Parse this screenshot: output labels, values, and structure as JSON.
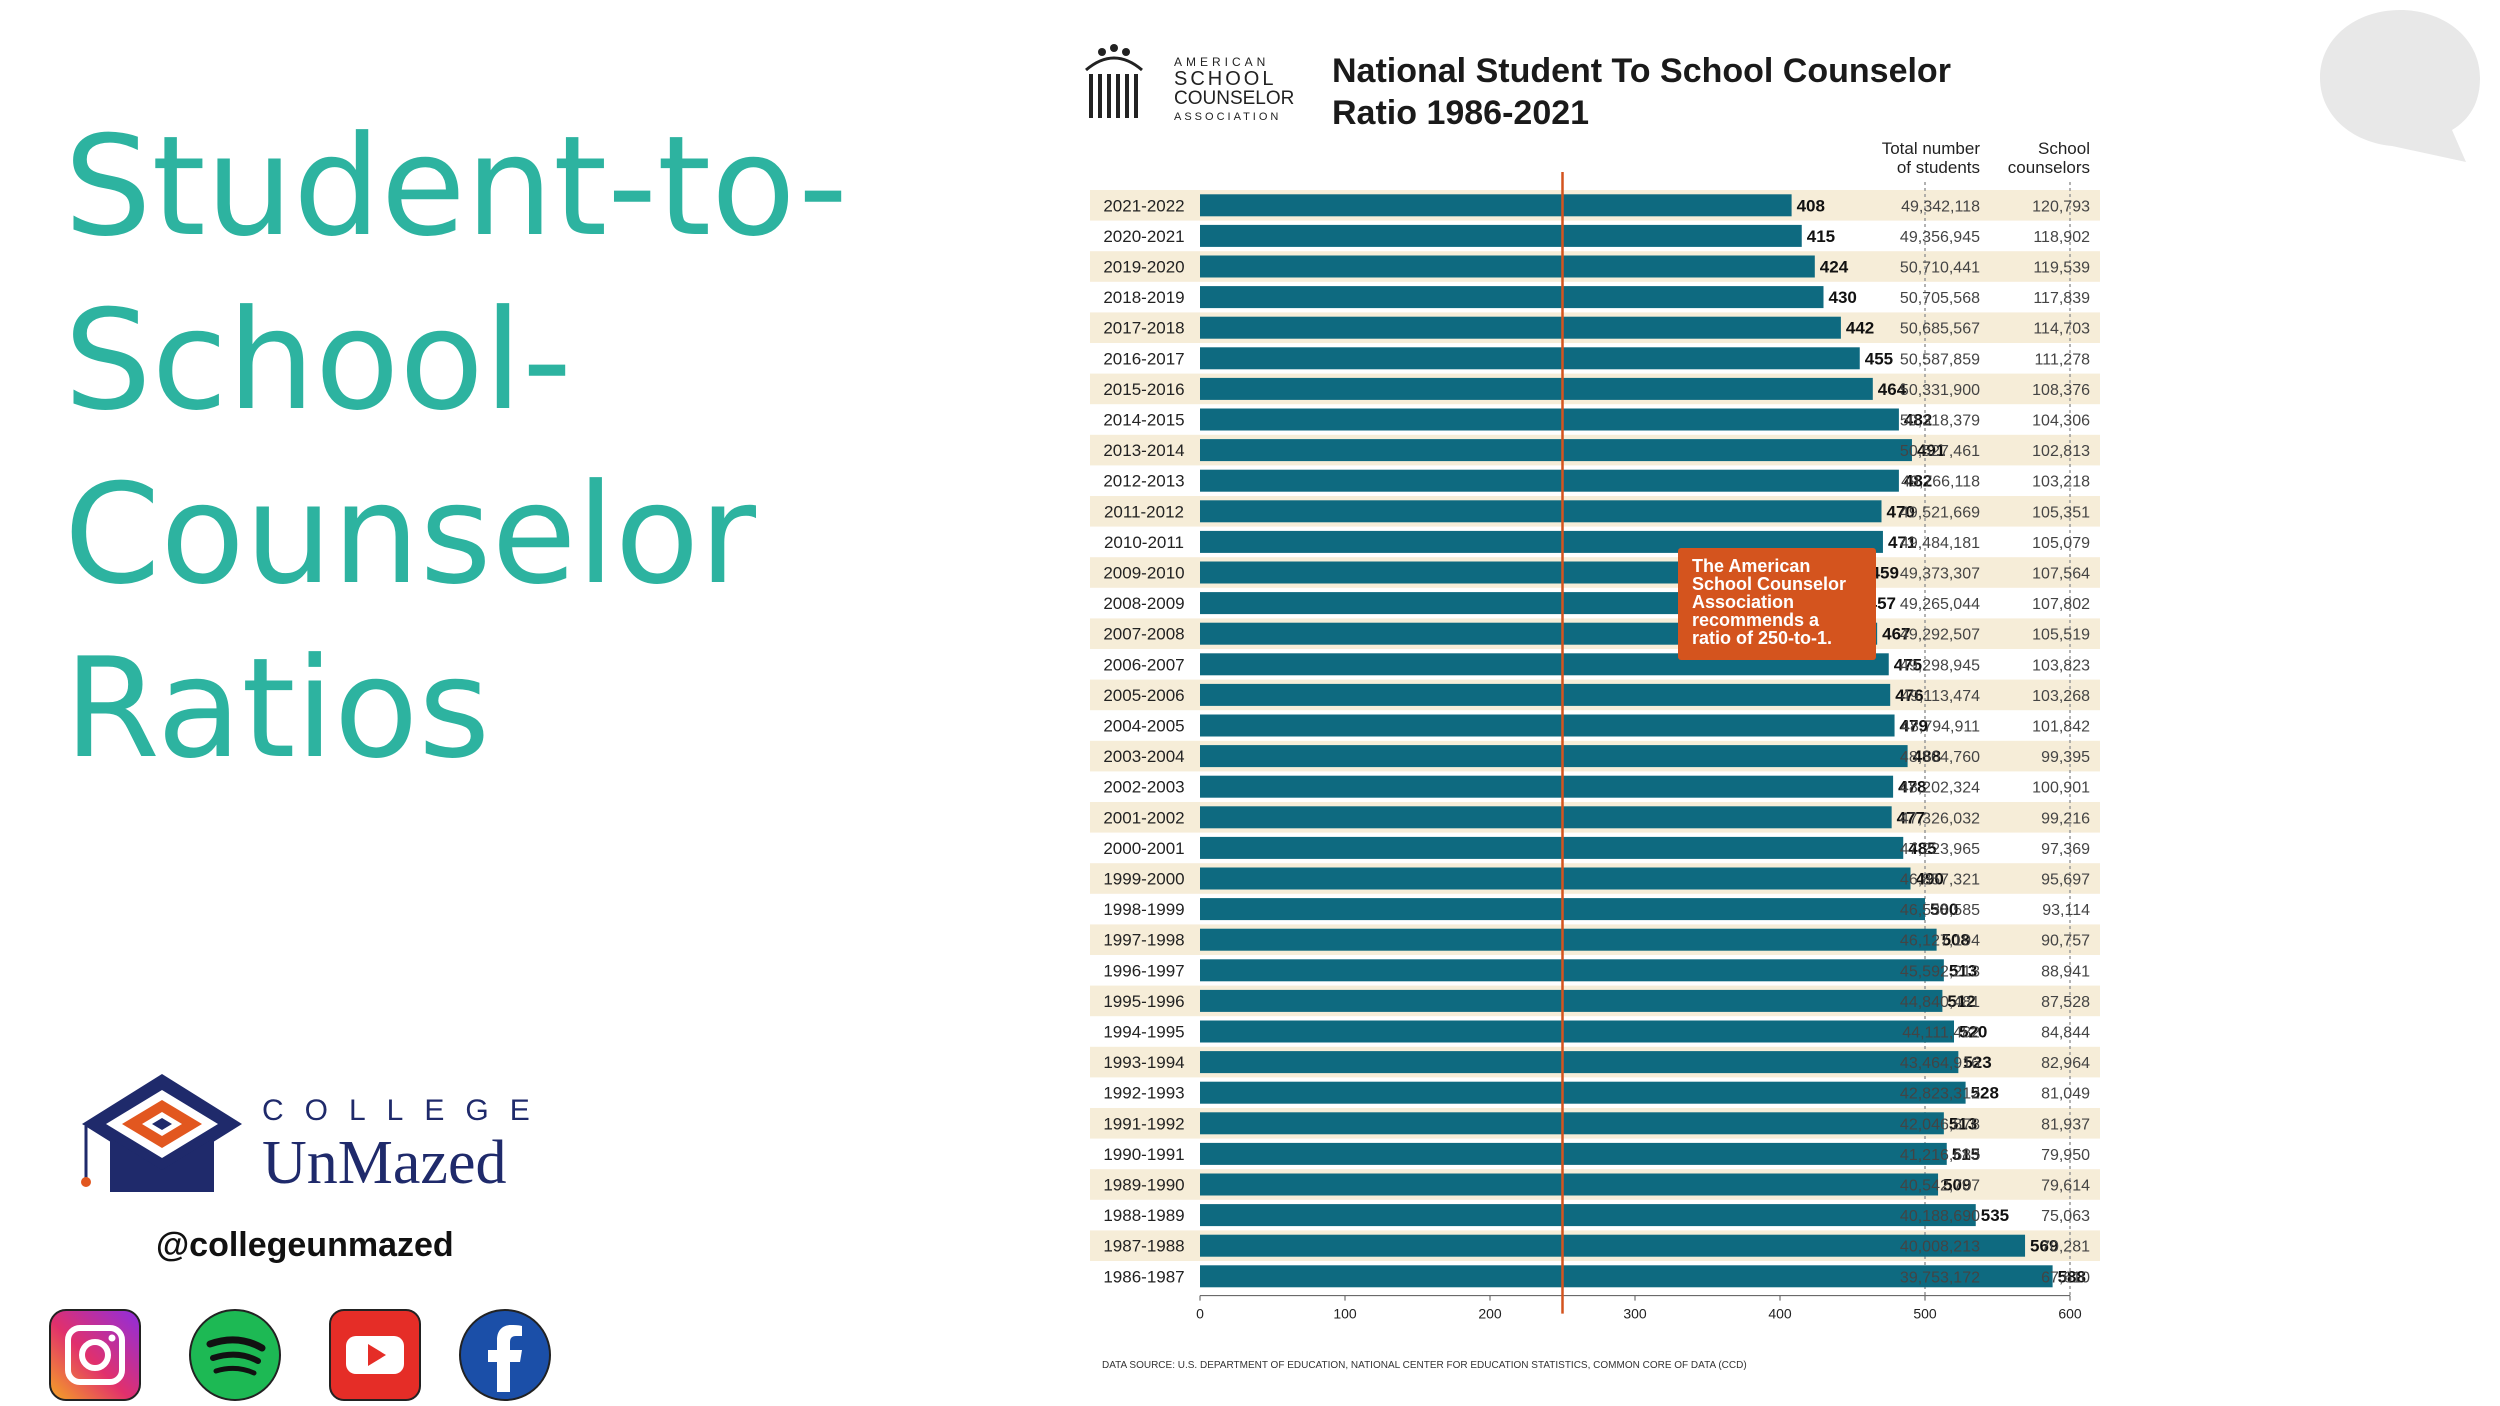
{
  "slide": {
    "title_lines": [
      "Student-to-",
      "School-",
      "Counselor",
      "Ratios"
    ],
    "handle": "@collegeunmazed",
    "brand": {
      "top_word": "COLLEGE",
      "name": "UnMazed"
    },
    "social_icons": [
      "instagram-icon",
      "spotify-icon",
      "youtube-icon",
      "facebook-icon"
    ]
  },
  "colors": {
    "title": "#2db3a0",
    "bar": "#0e6a80",
    "row_band": "#f6edd8",
    "callout": "#d4541e",
    "brand_navy": "#1f2a6b",
    "brand_orange": "#e2571f"
  },
  "asca_logo": {
    "line1": "AMERICAN",
    "line2": "SCHOOL",
    "line3": "COUNSELOR",
    "line4": "ASSOCIATION"
  },
  "chart_data": {
    "type": "bar",
    "orientation": "horizontal",
    "title": "National Student To School Counselor Ratio 1986-2021",
    "title_lines": [
      "National Student To School Counselor",
      "Ratio 1986-2021"
    ],
    "col_headers": {
      "students": [
        "Total number",
        "of students"
      ],
      "counselors": [
        "School",
        "counselors"
      ]
    },
    "xlim": [
      0,
      600
    ],
    "xticks": [
      0,
      100,
      200,
      300,
      400,
      500,
      600
    ],
    "reference_value": 250,
    "dashed_gridlines": [
      500,
      600
    ],
    "callout_lines": [
      "The American",
      "School Counselor",
      "Association",
      "recommends a",
      "ratio of 250-to-1."
    ],
    "source": "DATA SOURCE: U.S. DEPARTMENT OF EDUCATION, NATIONAL CENTER FOR EDUCATION STATISTICS, COMMON CORE OF DATA (CCD)",
    "rows": [
      {
        "year": "2021-2022",
        "ratio": 408,
        "students": "49,342,118",
        "counselors": "120,793"
      },
      {
        "year": "2020-2021",
        "ratio": 415,
        "students": "49,356,945",
        "counselors": "118,902"
      },
      {
        "year": "2019-2020",
        "ratio": 424,
        "students": "50,710,441",
        "counselors": "119,539"
      },
      {
        "year": "2018-2019",
        "ratio": 430,
        "students": "50,705,568",
        "counselors": "117,839"
      },
      {
        "year": "2017-2018",
        "ratio": 442,
        "students": "50,685,567",
        "counselors": "114,703"
      },
      {
        "year": "2016-2017",
        "ratio": 455,
        "students": "50,587,859",
        "counselors": "111,278"
      },
      {
        "year": "2015-2016",
        "ratio": 464,
        "students": "50,331,900",
        "counselors": "108,376"
      },
      {
        "year": "2014-2015",
        "ratio": 482,
        "students": "50,318,379",
        "counselors": "104,306"
      },
      {
        "year": "2013-2014",
        "ratio": 491,
        "students": "50,527,461",
        "counselors": "102,813"
      },
      {
        "year": "2012-2013",
        "ratio": 482,
        "students": "49,766,118",
        "counselors": "103,218"
      },
      {
        "year": "2011-2012",
        "ratio": 470,
        "students": "49,521,669",
        "counselors": "105,351"
      },
      {
        "year": "2010-2011",
        "ratio": 471,
        "students": "49,484,181",
        "counselors": "105,079"
      },
      {
        "year": "2009-2010",
        "ratio": 459,
        "students": "49,373,307",
        "counselors": "107,564"
      },
      {
        "year": "2008-2009",
        "ratio": 457,
        "students": "49,265,044",
        "counselors": "107,802"
      },
      {
        "year": "2007-2008",
        "ratio": 467,
        "students": "49,292,507",
        "counselors": "105,519"
      },
      {
        "year": "2006-2007",
        "ratio": 475,
        "students": "49,298,945",
        "counselors": "103,823"
      },
      {
        "year": "2005-2006",
        "ratio": 476,
        "students": "49,113,474",
        "counselors": "103,268"
      },
      {
        "year": "2004-2005",
        "ratio": 479,
        "students": "48,794,911",
        "counselors": "101,842"
      },
      {
        "year": "2003-2004",
        "ratio": 488,
        "students": "48,504,760",
        "counselors": "99,395"
      },
      {
        "year": "2002-2003",
        "ratio": 478,
        "students": "48,202,324",
        "counselors": "100,901"
      },
      {
        "year": "2001-2002",
        "ratio": 477,
        "students": "47,326,032",
        "counselors": "99,216"
      },
      {
        "year": "2000-2001",
        "ratio": 485,
        "students": "47,223,965",
        "counselors": "97,369"
      },
      {
        "year": "1999-2000",
        "ratio": 490,
        "students": "46,857,321",
        "counselors": "95,697"
      },
      {
        "year": "1998-1999",
        "ratio": 500,
        "students": "46,538,585",
        "counselors": "93,114"
      },
      {
        "year": "1997-1998",
        "ratio": 508,
        "students": "46,127,194",
        "counselors": "90,757"
      },
      {
        "year": "1996-1997",
        "ratio": 513,
        "students": "45,592,213",
        "counselors": "88,941"
      },
      {
        "year": "1995-1996",
        "ratio": 512,
        "students": "44,840,481",
        "counselors": "87,528"
      },
      {
        "year": "1994-1995",
        "ratio": 520,
        "students": "44,111,482",
        "counselors": "84,844"
      },
      {
        "year": "1993-1994",
        "ratio": 523,
        "students": "43,464,916",
        "counselors": "82,964"
      },
      {
        "year": "1992-1993",
        "ratio": 528,
        "students": "42,823,312",
        "counselors": "81,049"
      },
      {
        "year": "1991-1992",
        "ratio": 513,
        "students": "42,046,878",
        "counselors": "81,937"
      },
      {
        "year": "1990-1991",
        "ratio": 515,
        "students": "41,216,683",
        "counselors": "79,950"
      },
      {
        "year": "1989-1990",
        "ratio": 509,
        "students": "40,542,707",
        "counselors": "79,614"
      },
      {
        "year": "1988-1989",
        "ratio": 535,
        "students": "40,188,690",
        "counselors": "75,063"
      },
      {
        "year": "1987-1988",
        "ratio": 569,
        "students": "40,008,213",
        "counselors": "70,281"
      },
      {
        "year": "1986-1987",
        "ratio": 588,
        "students": "39,753,172",
        "counselors": "67,610"
      }
    ]
  }
}
